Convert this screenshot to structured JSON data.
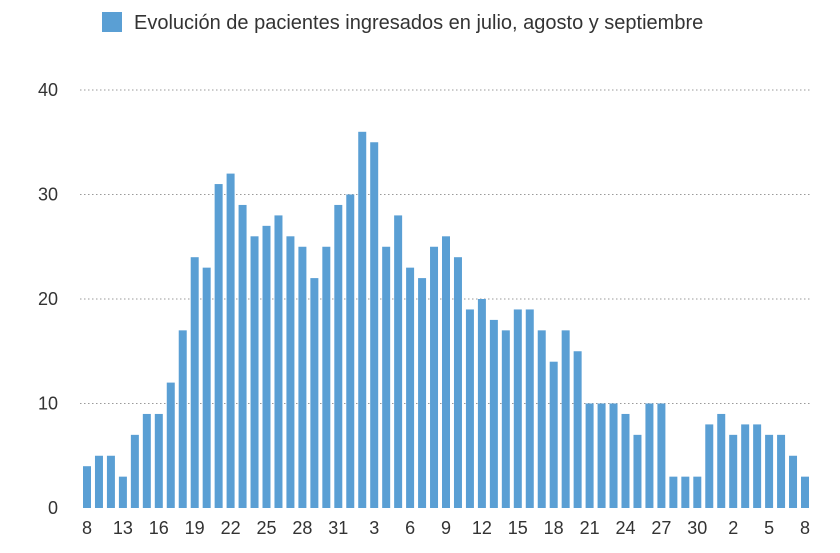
{
  "chart_data": {
    "type": "bar",
    "title": "",
    "xlabel": "",
    "ylabel": "",
    "legend": {
      "position": "top",
      "entries": [
        "Evolución de pacientes ingresados en julio, agosto y septiembre"
      ]
    },
    "series": [
      {
        "name": "Evolución de pacientes ingresados en julio, agosto y septiembre",
        "color": "#5a9fd4",
        "values": [
          4,
          5,
          5,
          3,
          7,
          9,
          9,
          12,
          17,
          24,
          23,
          31,
          32,
          29,
          26,
          27,
          28,
          26,
          25,
          22,
          25,
          29,
          30,
          36,
          35,
          25,
          28,
          23,
          22,
          25,
          26,
          24,
          19,
          20,
          18,
          17,
          19,
          19,
          17,
          14,
          17,
          15,
          10,
          10,
          10,
          9,
          7,
          10,
          10,
          3,
          3,
          3,
          8,
          9,
          7,
          8,
          8,
          7,
          7,
          5,
          3
        ]
      }
    ],
    "x_tick_labels": [
      "8",
      "13",
      "16",
      "19",
      "22",
      "25",
      "28",
      "31",
      "3",
      "6",
      "9",
      "12",
      "15",
      "18",
      "21",
      "24",
      "27",
      "30",
      "2",
      "5",
      "8"
    ],
    "x_tick_bar_index": [
      0,
      3,
      6,
      9,
      12,
      15,
      18,
      21,
      24,
      27,
      30,
      33,
      36,
      39,
      42,
      45,
      48,
      51,
      54,
      57,
      60
    ],
    "y_ticks": [
      0,
      10,
      20,
      30,
      40
    ],
    "ylim": [
      0,
      40
    ],
    "grid": true
  }
}
